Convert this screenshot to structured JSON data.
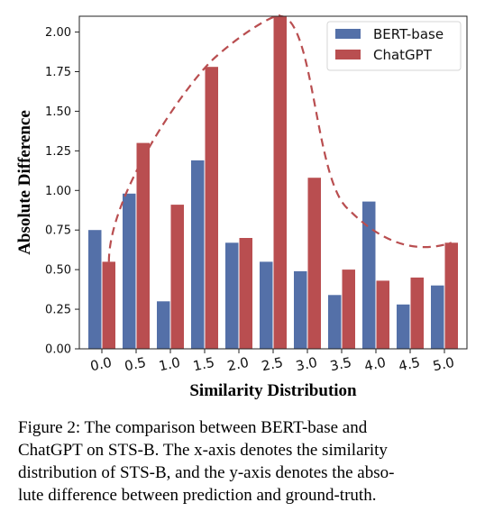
{
  "chart_data": {
    "type": "bar",
    "categories": [
      "0.0",
      "0.5",
      "1.0",
      "1.5",
      "2.0",
      "2.5",
      "3.0",
      "3.5",
      "4.0",
      "4.5",
      "5.0"
    ],
    "series": [
      {
        "name": "BERT-base",
        "color": "#5470a8",
        "values": [
          0.75,
          0.98,
          0.3,
          1.19,
          0.67,
          0.55,
          0.49,
          0.34,
          0.93,
          0.28,
          0.4
        ]
      },
      {
        "name": "ChatGPT",
        "color": "#b94e50",
        "values": [
          0.55,
          1.3,
          0.91,
          1.78,
          0.7,
          2.1,
          1.08,
          0.5,
          0.43,
          0.45,
          0.67
        ]
      }
    ],
    "trend_line": {
      "style": "dashed",
      "color": "#b94e50"
    },
    "xlabel": "Similarity Distribution",
    "ylabel": "Absolute Difference",
    "ylim": [
      0,
      2.1
    ],
    "yticks": [
      "0.00",
      "0.25",
      "0.50",
      "0.75",
      "1.00",
      "1.25",
      "1.50",
      "1.75",
      "2.00"
    ],
    "grid": false,
    "legend": "top-right"
  },
  "caption": {
    "lines": [
      "Figure 2: The comparison between BERT-base and",
      "ChatGPT on STS-B. The x-axis denotes the similarity",
      "distribution of STS-B, and the y-axis denotes the abso-",
      "lute difference between prediction and ground-truth."
    ]
  }
}
